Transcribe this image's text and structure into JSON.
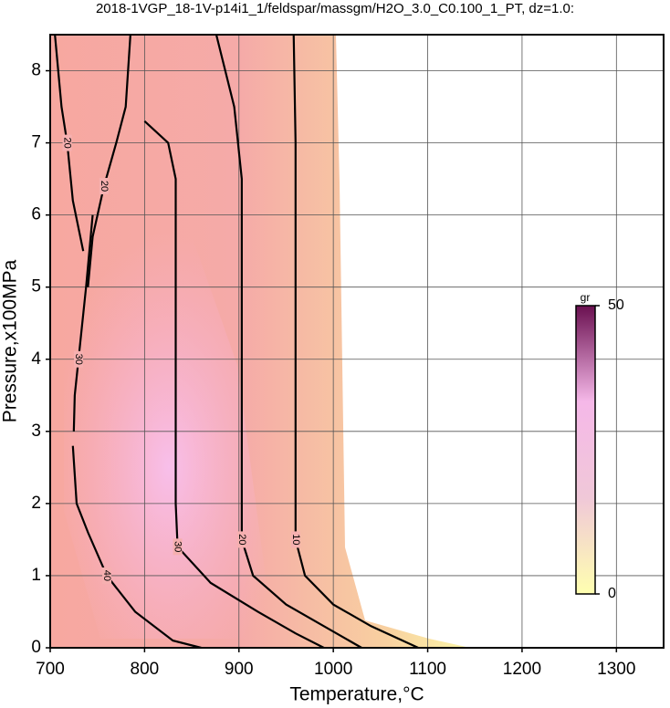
{
  "chart_data": {
    "type": "contour",
    "title": "2018-1VGP_18-1V-p14i1_1/feldspar/massgm/H2O_3.0_C0.100_1_PT, dz=1.0:",
    "x_label": "Temperature,°C",
    "y_label": "Pressure,x100MPa",
    "xlim": [
      700,
      1350
    ],
    "ylim": [
      0,
      8.5
    ],
    "xticks": [
      700,
      800,
      900,
      1000,
      1100,
      1200,
      1300
    ],
    "yticks": [
      0,
      1,
      2,
      3,
      4,
      5,
      6,
      7,
      8
    ],
    "grid": true,
    "colorbar": {
      "label": "gr",
      "ticks": [
        0,
        50
      ],
      "colors": [
        "#ffffb0",
        "#f0c8d8",
        "#f5b8e8",
        "#6a1050"
      ]
    },
    "contours": [
      {
        "level": 10,
        "x": [
          958,
          960,
          960,
          960,
          960,
          970,
          1000,
          1040,
          1090
        ],
        "y": [
          8.5,
          7,
          5,
          3,
          1.5,
          1.0,
          0.6,
          0.3,
          0
        ]
      },
      {
        "level": 20,
        "x": [
          876,
          895,
          903,
          903,
          903,
          915,
          950,
          990,
          1030
        ],
        "y": [
          8.5,
          7.5,
          6.5,
          4,
          1.5,
          1.0,
          0.6,
          0.3,
          0
        ]
      },
      {
        "level": 30,
        "x": [
          800,
          825,
          833,
          833,
          833,
          835,
          870,
          920,
          960,
          990
        ],
        "y": [
          7.3,
          7.0,
          6.5,
          4,
          2,
          1.4,
          0.9,
          0.5,
          0.2,
          0
        ]
      },
      {
        "level": 20,
        "x": [
          705,
          712,
          718,
          724,
          735
        ],
        "y": [
          8.5,
          7.5,
          7,
          6.2,
          5.5
        ]
      },
      {
        "level": 20,
        "x": [
          785,
          780,
          770,
          757,
          745,
          740
        ],
        "y": [
          8.5,
          7.5,
          7,
          6.4,
          5.7,
          5
        ]
      },
      {
        "level": 30,
        "x": [
          745,
          738,
          730,
          726,
          725
        ],
        "y": [
          6.0,
          5,
          4,
          3.5,
          3
        ]
      },
      {
        "level": 40,
        "x": [
          724,
          728,
          740,
          760,
          790,
          830,
          860
        ],
        "y": [
          2.8,
          2.0,
          1.6,
          1.0,
          0.5,
          0.1,
          0
        ]
      }
    ]
  }
}
